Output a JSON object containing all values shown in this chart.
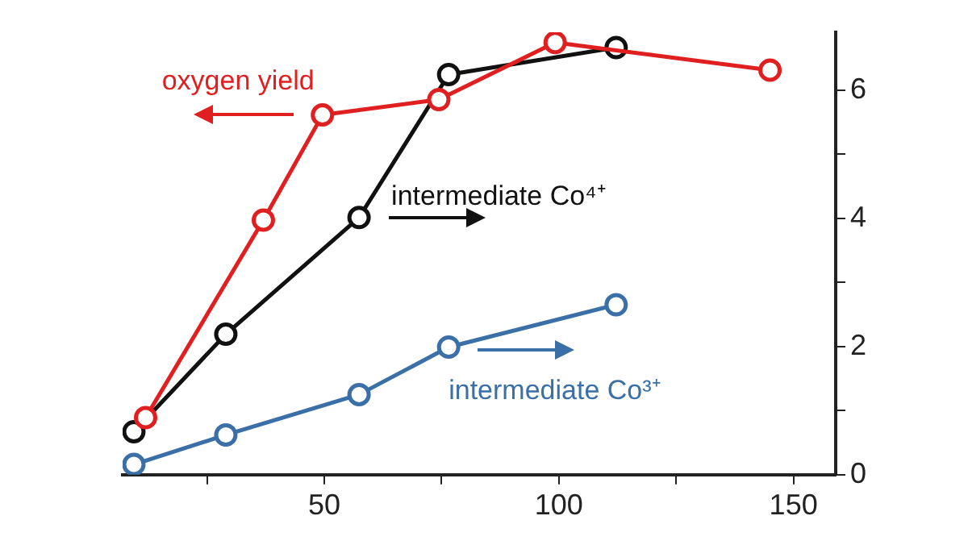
{
  "chart_data": {
    "type": "line",
    "marker": "circle",
    "grid": false,
    "xlim": [
      7,
      159
    ],
    "xticks": [
      {
        "value": 25,
        "label": null
      },
      50,
      {
        "value": 75,
        "label": null
      },
      100,
      {
        "value": 125,
        "label": null
      },
      150
    ],
    "ylim": [
      0,
      6.9
    ],
    "yticks": [
      0,
      {
        "value": 1,
        "label": null
      },
      2,
      {
        "value": 3,
        "label": null
      },
      4,
      {
        "value": 5,
        "label": null
      },
      6
    ],
    "series": [
      {
        "name": "oxygen yield",
        "color": "#e02020",
        "x": [
          11.9,
          37,
          49.6,
          74.4,
          99.2,
          145
        ],
        "values": [
          0.89,
          3.97,
          5.61,
          5.85,
          6.74,
          6.31
        ]
      },
      {
        "name": "intermediate Co⁴⁺",
        "color": "#111111",
        "x": [
          9.4,
          29,
          57.4,
          76.5,
          112.2
        ],
        "values": [
          0.67,
          2.19,
          4.01,
          6.24,
          6.66
        ]
      },
      {
        "name": "intermediate Co³⁺",
        "color": "#3a6fa8",
        "x": [
          9.4,
          29,
          57.4,
          76.5,
          112.2
        ],
        "values": [
          0.16,
          0.62,
          1.25,
          1.99,
          2.65
        ]
      }
    ]
  }
}
